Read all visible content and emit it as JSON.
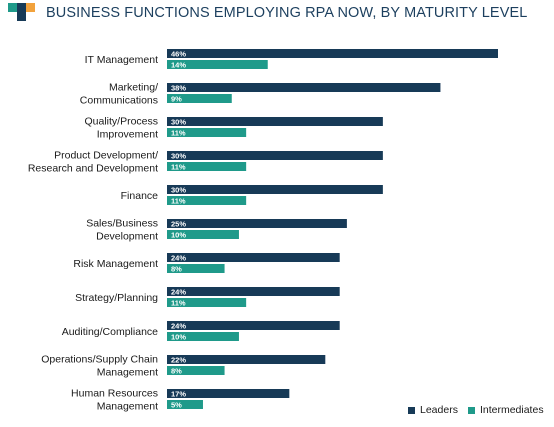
{
  "title": "BUSINESS FUNCTIONS EMPLOYING RPA NOW, BY MATURITY LEVEL",
  "colors": {
    "title": "#1c3f5e",
    "leaders": "#173a57",
    "intermediates": "#1f9a8a",
    "logo_teal": "#1f9a8a",
    "logo_navy": "#173a57",
    "logo_orange": "#f2a23c",
    "label_text": "#1a1a1a",
    "bar_text": "#ffffff"
  },
  "logo_icon": "stepped-squares-logo-icon",
  "chart_data": {
    "type": "bar",
    "orientation": "horizontal",
    "title": "BUSINESS FUNCTIONS EMPLOYING RPA NOW, BY MATURITY LEVEL",
    "categories": [
      [
        "IT Management"
      ],
      [
        "Marketing/",
        "Communications"
      ],
      [
        "Quality/Process",
        "Improvement"
      ],
      [
        "Product Development/",
        "Research and Development"
      ],
      [
        "Finance"
      ],
      [
        "Sales/Business",
        "Development"
      ],
      [
        "Risk Management"
      ],
      [
        "Strategy/Planning"
      ],
      [
        "Auditing/Compliance"
      ],
      [
        "Operations/Supply Chain",
        "Management"
      ],
      [
        "Human Resources",
        "Management"
      ]
    ],
    "series": [
      {
        "name": "Leaders",
        "values": [
          46,
          38,
          30,
          30,
          30,
          25,
          24,
          24,
          24,
          22,
          17
        ]
      },
      {
        "name": "Intermediates",
        "values": [
          14,
          9,
          11,
          11,
          11,
          10,
          8,
          11,
          10,
          8,
          5
        ]
      }
    ],
    "unit": "%",
    "xlim": [
      0,
      46
    ],
    "grid": false,
    "legend_position": "bottom-right"
  }
}
